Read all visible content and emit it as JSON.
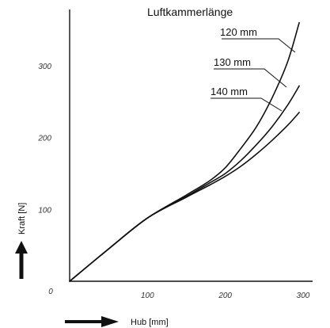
{
  "chart_data": {
    "type": "line",
    "title": "Luftkammerlänge",
    "xlabel": "Hub [mm]",
    "ylabel": "Kraft [N]",
    "xlim": [
      0,
      330
    ],
    "ylim": [
      0,
      370
    ],
    "x_ticks": [
      0,
      100,
      200,
      300
    ],
    "y_ticks": [
      100,
      200,
      300
    ],
    "grid": false,
    "legend": "inline-labels",
    "series": [
      {
        "name": "120 mm",
        "x": [
          0,
          50,
          100,
          150,
          180,
          200,
          220,
          240,
          260,
          280,
          295
        ],
        "y": [
          0,
          45,
          88,
          120,
          140,
          158,
          185,
          215,
          255,
          305,
          360
        ]
      },
      {
        "name": "130 mm",
        "x": [
          0,
          50,
          100,
          150,
          180,
          200,
          220,
          240,
          260,
          280,
          295
        ],
        "y": [
          0,
          45,
          88,
          118,
          137,
          150,
          168,
          190,
          215,
          245,
          272
        ]
      },
      {
        "name": "140 mm",
        "x": [
          0,
          50,
          100,
          150,
          180,
          200,
          220,
          240,
          260,
          280,
          295
        ],
        "y": [
          0,
          45,
          88,
          117,
          134,
          146,
          160,
          177,
          196,
          217,
          235
        ]
      }
    ]
  }
}
